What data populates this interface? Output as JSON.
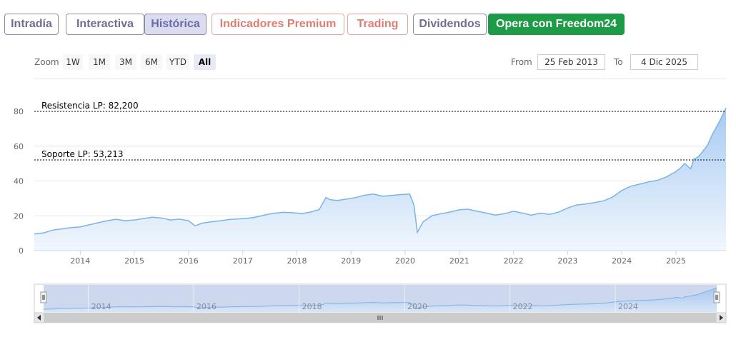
{
  "tabs": [
    {
      "label": "Intradía",
      "style": "gray"
    },
    {
      "label": "Interactiva",
      "style": "gray"
    },
    {
      "label": "Histórica",
      "style": "active"
    },
    {
      "label": "Indicadores Premium",
      "style": "salmon"
    },
    {
      "label": "Trading",
      "style": "salmon"
    },
    {
      "label": "Dividendos",
      "style": "gray"
    },
    {
      "label": "Opera con Freedom24",
      "style": "green"
    }
  ],
  "zoom": {
    "label": "Zoom",
    "buttons": [
      "1W",
      "1M",
      "3M",
      "6M",
      "YTD",
      "All"
    ],
    "selected": "All"
  },
  "range": {
    "from_label": "From",
    "from_value": "25 Feb 2013",
    "to_label": "To",
    "to_value": "4 Dic 2025"
  },
  "colors": {
    "line": "#7ab3e6",
    "area_top": "#a7cbf2",
    "area_bottom": "#f1f7fd",
    "tab_gray": "#6e6e8e",
    "tab_salmon": "#de7d72",
    "tab_green": "#1e9b46"
  },
  "chart_data": {
    "type": "area",
    "ylim": [
      0,
      80
    ],
    "xlim": [
      "2013-02-25",
      "2025-12-04"
    ],
    "y_ticks": [
      "0",
      "20",
      "40",
      "60",
      "80"
    ],
    "x_ticks": [
      "2014",
      "2015",
      "2016",
      "2017",
      "2018",
      "2019",
      "2020",
      "2021",
      "2022",
      "2023",
      "2024",
      "2025"
    ],
    "navigator_ticks": [
      "2014",
      "2016",
      "2018",
      "2020",
      "2022",
      "2024"
    ],
    "grid": true,
    "legend": "none",
    "annotations": [
      {
        "label": "Resistencia LP: 82,200",
        "y": 82.2
      },
      {
        "label": "Soporte LP: 53,213",
        "y": 53.213
      }
    ],
    "series": [
      {
        "x": [
          "2013-02-25",
          "2013-05-01",
          "2013-07-01",
          "2013-09-01",
          "2013-11-01",
          "2014-01-01",
          "2014-03-01",
          "2014-05-01",
          "2014-07-01",
          "2014-09-01",
          "2014-11-01",
          "2015-01-01",
          "2015-03-01",
          "2015-05-01",
          "2015-07-01",
          "2015-09-01",
          "2015-11-01",
          "2016-01-01",
          "2016-02-15",
          "2016-04-01",
          "2016-06-01",
          "2016-08-01",
          "2016-10-01",
          "2016-12-01",
          "2017-02-01",
          "2017-04-01",
          "2017-06-01",
          "2017-08-01",
          "2017-10-01",
          "2017-12-01",
          "2018-02-01",
          "2018-04-01",
          "2018-06-01",
          "2018-07-15",
          "2018-08-15",
          "2018-10-01",
          "2018-12-01",
          "2019-02-01",
          "2019-04-01",
          "2019-06-01",
          "2019-08-01",
          "2019-10-01",
          "2019-12-01",
          "2020-02-01",
          "2020-03-01",
          "2020-03-23",
          "2020-05-01",
          "2020-07-01",
          "2020-09-01",
          "2020-11-01",
          "2021-01-01",
          "2021-03-01",
          "2021-05-01",
          "2021-07-01",
          "2021-09-01",
          "2021-11-01",
          "2022-01-01",
          "2022-03-01",
          "2022-05-01",
          "2022-07-01",
          "2022-09-01",
          "2022-11-01",
          "2023-01-01",
          "2023-03-01",
          "2023-05-01",
          "2023-07-01",
          "2023-09-01",
          "2023-11-01",
          "2024-01-01",
          "2024-03-01",
          "2024-05-01",
          "2024-07-01",
          "2024-09-01",
          "2024-11-01",
          "2025-01-01",
          "2025-02-01",
          "2025-03-01",
          "2025-04-10",
          "2025-05-01",
          "2025-06-01",
          "2025-07-01",
          "2025-08-01",
          "2025-09-01",
          "2025-10-01",
          "2025-11-01",
          "2025-12-04"
        ],
        "y": [
          9.5,
          10.2,
          11.8,
          12.5,
          13.2,
          13.6,
          14.8,
          16.0,
          17.2,
          18.0,
          17.2,
          17.6,
          18.4,
          19.2,
          18.8,
          17.6,
          18.1,
          17.2,
          14.2,
          15.8,
          16.5,
          17.1,
          17.9,
          18.2,
          18.6,
          19.3,
          20.5,
          21.5,
          22.0,
          21.8,
          21.3,
          22.1,
          23.6,
          30.5,
          29.2,
          28.8,
          29.6,
          30.5,
          31.8,
          32.5,
          31.2,
          31.7,
          32.2,
          32.5,
          26.0,
          10.5,
          16.5,
          20.1,
          21.2,
          22.2,
          23.5,
          23.8,
          22.6,
          21.6,
          20.4,
          21.2,
          22.6,
          21.6,
          20.4,
          21.5,
          20.8,
          22.1,
          24.5,
          26.2,
          26.8,
          27.6,
          28.6,
          30.8,
          34.5,
          37.0,
          38.2,
          39.5,
          40.5,
          42.5,
          45.5,
          47.5,
          50.0,
          47.0,
          52.5,
          54.0,
          57.0,
          60.5,
          66.5,
          71.0,
          76.0,
          82.0
        ]
      }
    ]
  }
}
